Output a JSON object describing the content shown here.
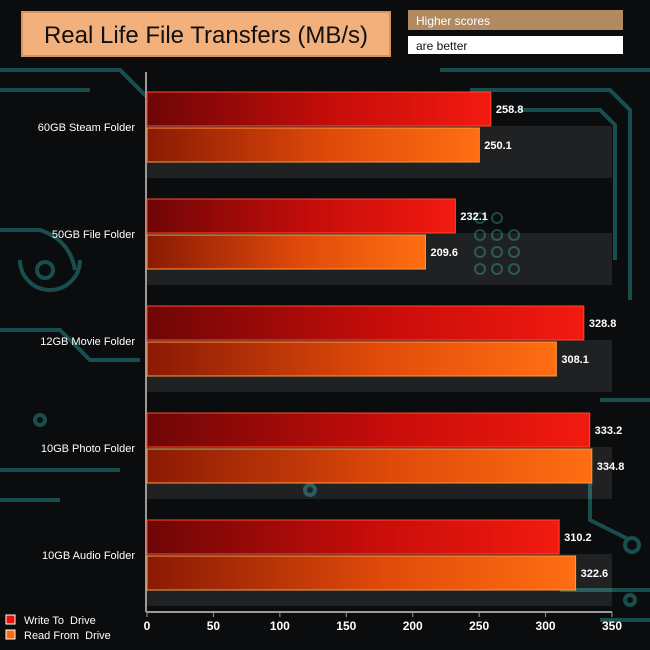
{
  "header": {
    "title": "Real Life File Transfers (MB/s)",
    "note_line1": "Higher scores",
    "note_line2": "are better"
  },
  "colors": {
    "title_bg": "#f2b07c",
    "note_bg": "#b08a60",
    "write_series": "#e8120c",
    "read_series": "#ff6a10",
    "background": "#0a0c0d",
    "circuit": "#1d5a5a"
  },
  "chart_data": {
    "type": "bar",
    "orientation": "horizontal",
    "title": "Real Life File Transfers (MB/s)",
    "categories": [
      "60GB Steam Folder",
      "50GB File Folder",
      "12GB Movie Folder",
      "10GB Photo Folder",
      "10GB Audio Folder"
    ],
    "series": [
      {
        "name": "Write To  Drive",
        "values": [
          258.8,
          232.1,
          328.8,
          333.2,
          310.2
        ]
      },
      {
        "name": "Read From  Drive",
        "values": [
          250.1,
          209.6,
          308.1,
          334.8,
          322.6
        ]
      }
    ],
    "xlim": [
      0,
      350
    ],
    "xticks": [
      0,
      50,
      100,
      150,
      200,
      250,
      300,
      350
    ],
    "legend_position": "bottom-left",
    "data_labels": true
  }
}
